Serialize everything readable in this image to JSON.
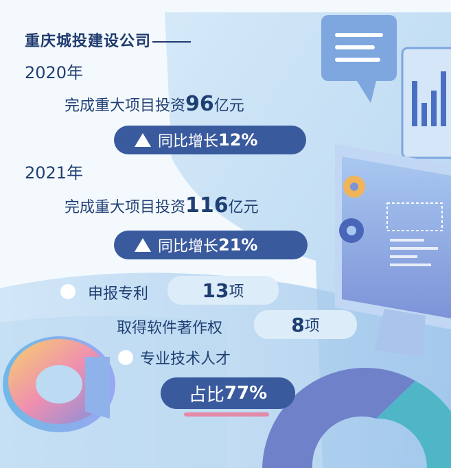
{
  "title": "重庆城投建设公司",
  "years": [
    {
      "year": "2020年",
      "invest_prefix": "完成重大项目投资",
      "invest_value": "96",
      "invest_unit": "亿元",
      "growth_label": "同比增长",
      "growth_value": "12%"
    },
    {
      "year": "2021年",
      "invest_prefix": "完成重大项目投资",
      "invest_value": "116",
      "invest_unit": "亿元",
      "growth_label": "同比增长",
      "growth_value": "21%"
    }
  ],
  "stats": {
    "patents_label": "申报专利",
    "patents_value": "13",
    "patents_unit": "项",
    "software_label": "取得软件著作权",
    "software_value": "8",
    "software_unit": "项",
    "talent_label": "专业技术人才",
    "talent_ratio_label": "占比",
    "talent_ratio_value": "77%"
  },
  "colors": {
    "primary": "#3a5a9e",
    "text": "#1f3f73",
    "light_blue": "#b8d8f2",
    "accent_pink": "#e489a8"
  }
}
